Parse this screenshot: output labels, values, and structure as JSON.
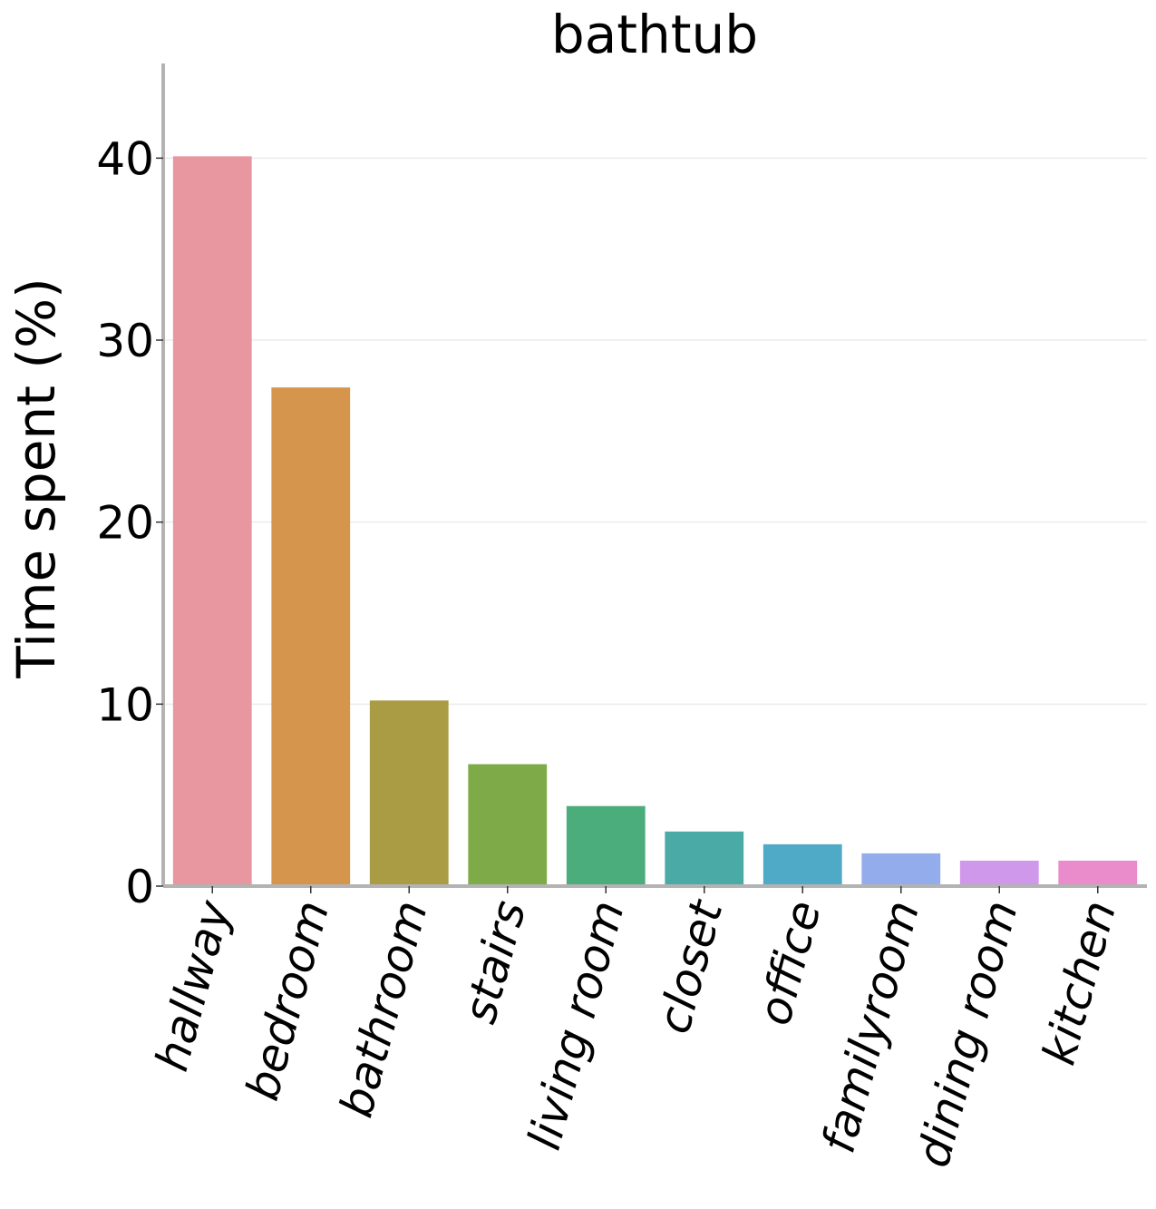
{
  "chart_data": {
    "type": "bar",
    "title": "bathtub",
    "xlabel": "",
    "ylabel": "Time spent (%)",
    "ylim": [
      0,
      45.2
    ],
    "yticks": [
      0,
      10,
      20,
      30,
      40
    ],
    "grid": "horizontal",
    "categories": [
      "hallway",
      "bedroom",
      "bathroom",
      "stairs",
      "living room",
      "closet",
      "office",
      "familyroom",
      "dining room",
      "kitchen"
    ],
    "values": [
      40.1,
      27.4,
      10.2,
      6.7,
      4.4,
      3.0,
      2.3,
      1.8,
      1.4,
      1.4
    ],
    "colors": [
      "#e8969f",
      "#d6954d",
      "#a99c45",
      "#7faa48",
      "#4cad7c",
      "#4aaba6",
      "#4eaac6",
      "#93acec",
      "#cf98ea",
      "#ea8ccb"
    ]
  }
}
